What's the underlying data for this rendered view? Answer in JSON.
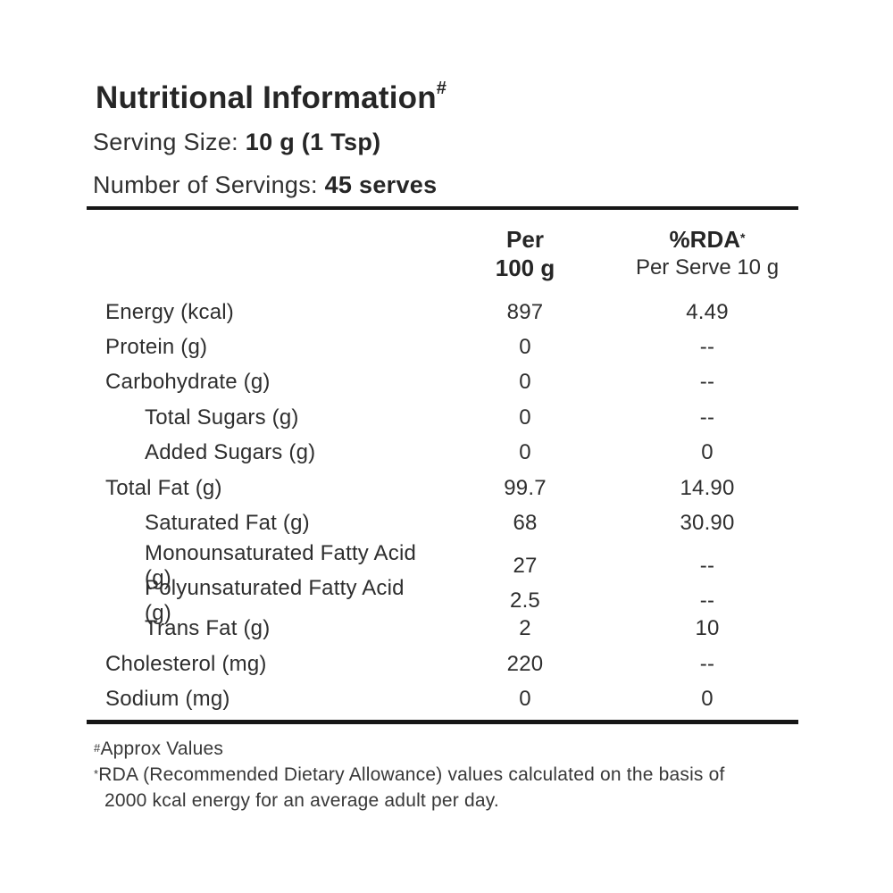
{
  "label": {
    "title": "Nutritional Information",
    "title_superscript": "#",
    "serving_size_label": "Serving Size: ",
    "serving_size_value": "10 g (1 Tsp)",
    "servings_label": "Number of Servings: ",
    "servings_value": "45 serves"
  },
  "table": {
    "columns": [
      {
        "line1": "Per",
        "line2": "100 g"
      },
      {
        "line1": "%RDA",
        "line1_superscript": "*",
        "line2": "Per Serve 10 g"
      }
    ],
    "rows": [
      {
        "nutrient": "Energy (kcal)",
        "per_100g": "897",
        "rda_per_serve": "4.49",
        "indent": false
      },
      {
        "nutrient": "Protein (g)",
        "per_100g": "0",
        "rda_per_serve": "--",
        "indent": false
      },
      {
        "nutrient": "Carbohydrate (g)",
        "per_100g": "0",
        "rda_per_serve": "--",
        "indent": false
      },
      {
        "nutrient": "Total Sugars (g)",
        "per_100g": "0",
        "rda_per_serve": "--",
        "indent": true
      },
      {
        "nutrient": "Added Sugars (g)",
        "per_100g": "0",
        "rda_per_serve": "0",
        "indent": true
      },
      {
        "nutrient": "Total Fat (g)",
        "per_100g": "99.7",
        "rda_per_serve": "14.90",
        "indent": false
      },
      {
        "nutrient": "Saturated Fat (g)",
        "per_100g": "68",
        "rda_per_serve": "30.90",
        "indent": true
      },
      {
        "nutrient": "Monounsaturated Fatty Acid (g)",
        "per_100g": "27",
        "rda_per_serve": "--",
        "indent": true
      },
      {
        "nutrient": "Polyunsaturated Fatty Acid (g)",
        "per_100g": "2.5",
        "rda_per_serve": "--",
        "indent": true
      },
      {
        "nutrient": "Trans Fat (g)",
        "per_100g": "2",
        "rda_per_serve": "10",
        "indent": true
      },
      {
        "nutrient": "Cholesterol (mg)",
        "per_100g": "220",
        "rda_per_serve": "--",
        "indent": false
      },
      {
        "nutrient": "Sodium (mg)",
        "per_100g": "0",
        "rda_per_serve": "0",
        "indent": false
      }
    ]
  },
  "footnotes": [
    {
      "marker": "#",
      "text": "Approx Values"
    },
    {
      "marker": "*",
      "text": "RDA (Recommended Dietary Allowance) values calculated on the basis of 2000 kcal energy for an average adult per day."
    }
  ],
  "colors": {
    "background": "#ffffff",
    "text": "#2b2b2b",
    "rule": "#161616"
  }
}
